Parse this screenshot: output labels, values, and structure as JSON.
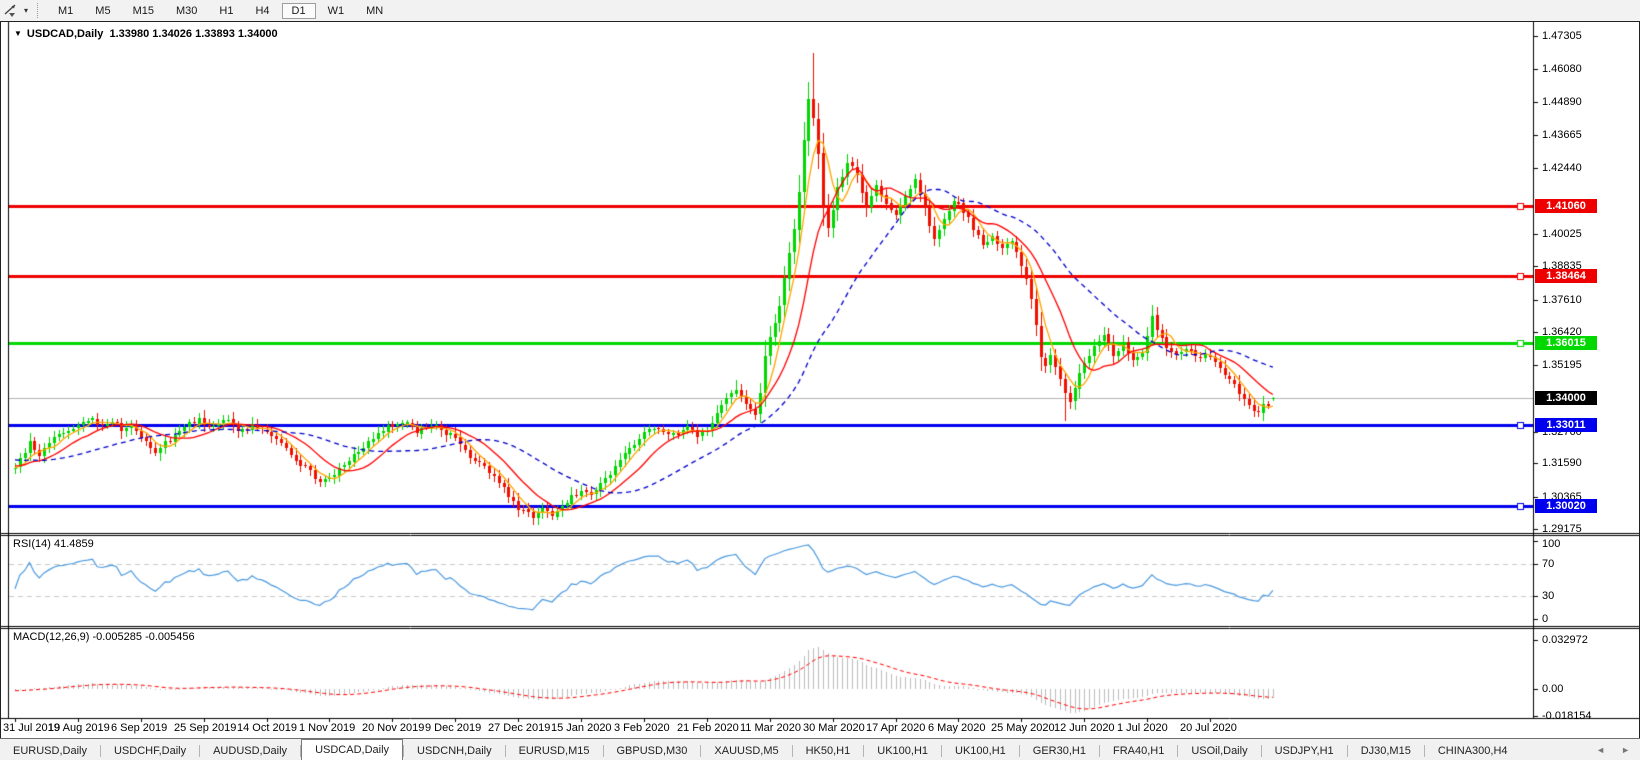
{
  "toolbar": {
    "periods": [
      "M1",
      "M5",
      "M15",
      "M30",
      "H1",
      "H4",
      "D1",
      "W1",
      "MN"
    ],
    "active_period": "D1",
    "line_tool_icon": "trendline-cursor-icon",
    "dropdown_caret": "▾"
  },
  "header": {
    "symbol": "USDCAD,Daily",
    "ohlc": "1.33980 1.34026 1.33893 1.34000"
  },
  "panels": {
    "rsi_label": "RSI(14) 41.4859",
    "macd_label": "MACD(12,26,9) -0.005285 -0.005456"
  },
  "tabs": {
    "items": [
      "EURUSD,Daily",
      "USDCHF,Daily",
      "AUDUSD,Daily",
      "USDCAD,Daily",
      "USDCNH,Daily",
      "EURUSD,M15",
      "GBPUSD,M30",
      "XAUUSD,M5",
      "HK50,H1",
      "UK100,H1",
      "UK100,H1",
      "GER30,H1",
      "FRA40,H1",
      "USOil,Daily",
      "USDJPY,H1",
      "DJ30,M15",
      "CHINA300,H4"
    ],
    "active": "USDCAD,Daily",
    "scroll_left": "◄",
    "scroll_right": "►"
  },
  "chart_data": {
    "type": "candlestick",
    "symbol": "USDCAD",
    "timeframe": "Daily",
    "colors": {
      "bull": "#00d800",
      "bear": "#f01000",
      "ma_fast_orange": "#ffa500",
      "ma_mid_red": "#ff0000",
      "ma_slow_blue": "#0000cc",
      "rsi_line": "#4c9ae0",
      "level_dash": "#c8c8c8",
      "macd_hist": "#bdbdbd",
      "macd_signal": "#ff0000",
      "current_price_line": "#b4b4b4",
      "current_price_bg": "#000000"
    },
    "y_axis": {
      "top_price": 1.47305,
      "bottom_price": 1.29175,
      "ticks": [
        "1.47305",
        "1.46080",
        "1.44890",
        "1.43665",
        "1.42440",
        "1.40025",
        "1.38835",
        "1.37610",
        "1.36420",
        "1.35195",
        "1.32760",
        "1.31590",
        "1.30365",
        "1.29175"
      ]
    },
    "x_axis": {
      "labels": [
        "31 Jul 2019",
        "19 Aug 2019",
        "6 Sep 2019",
        "25 Sep 2019",
        "14 Oct 2019",
        "1 Nov 2019",
        "20 Nov 2019",
        "9 Dec 2019",
        "27 Dec 2019",
        "15 Jan 2020",
        "3 Feb 2020",
        "21 Feb 2020",
        "11 Mar 2020",
        "30 Mar 2020",
        "17 Apr 2020",
        "6 May 2020",
        "25 May 2020",
        "12 Jun 2020",
        "1 Jul 2020",
        "20 Jul 2020"
      ],
      "label_day_index": [
        0,
        13,
        26,
        39,
        52,
        65,
        78,
        91,
        104,
        117,
        130,
        143,
        156,
        169,
        182,
        195,
        208,
        221,
        234,
        247
      ]
    },
    "h_lines": [
      {
        "price": 1.4106,
        "label": "1.41060",
        "color": "#ee0000",
        "width": 3
      },
      {
        "price": 1.38464,
        "label": "1.38464",
        "color": "#ee0000",
        "width": 3
      },
      {
        "price": 1.36015,
        "label": "1.36015",
        "color": "#00d800",
        "width": 3
      },
      {
        "price": 1.33011,
        "label": "1.33011",
        "color": "#0000ee",
        "width": 3
      },
      {
        "price": 1.3002,
        "label": "1.30020",
        "color": "#0000ee",
        "width": 3
      }
    ],
    "current_price": {
      "price": 1.34,
      "label": "1.34000"
    },
    "moving_averages": [
      {
        "period": 5,
        "color": "#ffa500",
        "style": "solid"
      },
      {
        "period": 12,
        "color": "#ff0000",
        "style": "solid"
      },
      {
        "period": 30,
        "color": "#0000cc",
        "style": "dashed"
      }
    ],
    "rsi": {
      "period": 14,
      "value": 41.4859,
      "levels": [
        70,
        30
      ],
      "ticks": [
        "100",
        "70",
        "30",
        "0"
      ],
      "tick_values": [
        100,
        70,
        30,
        0
      ]
    },
    "macd": {
      "fast": 12,
      "slow": 26,
      "signal": 9,
      "main_value": -0.005285,
      "signal_value": -0.005456,
      "ticks": [
        "0.032972",
        "0.00",
        "-0.018154"
      ],
      "tick_values": [
        0.032972,
        0,
        -0.018154
      ]
    },
    "prehistory_anchors": [
      [
        -60,
        1.3205
      ],
      [
        -45,
        1.3168
      ],
      [
        -30,
        1.3224
      ],
      [
        -15,
        1.3164
      ],
      [
        -1,
        1.3138
      ]
    ],
    "close_anchors": [
      [
        0,
        1.3135
      ],
      [
        1,
        1.318
      ],
      [
        3,
        1.323
      ],
      [
        5,
        1.3195
      ],
      [
        8,
        1.3265
      ],
      [
        11,
        1.3285
      ],
      [
        14,
        1.3305
      ],
      [
        16,
        1.333
      ],
      [
        18,
        1.329
      ],
      [
        20,
        1.332
      ],
      [
        22,
        1.3282
      ],
      [
        24,
        1.33
      ],
      [
        26,
        1.325
      ],
      [
        29,
        1.3205
      ],
      [
        32,
        1.3245
      ],
      [
        35,
        1.329
      ],
      [
        38,
        1.3318
      ],
      [
        41,
        1.3295
      ],
      [
        44,
        1.333
      ],
      [
        46,
        1.327
      ],
      [
        49,
        1.3305
      ],
      [
        52,
        1.3272
      ],
      [
        55,
        1.3225
      ],
      [
        58,
        1.3168
      ],
      [
        61,
        1.3125
      ],
      [
        63,
        1.3085
      ],
      [
        65,
        1.3108
      ],
      [
        68,
        1.3152
      ],
      [
        71,
        1.32
      ],
      [
        74,
        1.3248
      ],
      [
        77,
        1.3292
      ],
      [
        80,
        1.331
      ],
      [
        83,
        1.328
      ],
      [
        86,
        1.3302
      ],
      [
        89,
        1.3272
      ],
      [
        91,
        1.3248
      ],
      [
        94,
        1.3185
      ],
      [
        96,
        1.3158
      ],
      [
        99,
        1.3122
      ],
      [
        101,
        1.3062
      ],
      [
        103,
        1.3012
      ],
      [
        105,
        1.2982
      ],
      [
        107,
        1.2958
      ],
      [
        109,
        1.2988
      ],
      [
        111,
        1.2965
      ],
      [
        113,
        1.2998
      ],
      [
        115,
        1.3042
      ],
      [
        117,
        1.3058
      ],
      [
        119,
        1.3048
      ],
      [
        122,
        1.3098
      ],
      [
        125,
        1.3162
      ],
      [
        128,
        1.3232
      ],
      [
        130,
        1.327
      ],
      [
        133,
        1.3296
      ],
      [
        136,
        1.3262
      ],
      [
        139,
        1.3292
      ],
      [
        141,
        1.3258
      ],
      [
        143,
        1.3282
      ],
      [
        145,
        1.3335
      ],
      [
        147,
        1.3395
      ],
      [
        149,
        1.3428
      ],
      [
        151,
        1.3378
      ],
      [
        153,
        1.3335
      ],
      [
        154,
        1.342
      ],
      [
        155,
        1.356
      ],
      [
        156,
        1.3615
      ],
      [
        157,
        1.368
      ],
      [
        158,
        1.3745
      ],
      [
        159,
        1.383
      ],
      [
        160,
        1.3925
      ],
      [
        161,
        1.403
      ],
      [
        162,
        1.4155
      ],
      [
        163,
        1.435
      ],
      [
        164,
        1.4495
      ],
      [
        165,
        1.4425
      ],
      [
        166,
        1.429
      ],
      [
        167,
        1.411
      ],
      [
        168,
        1.403
      ],
      [
        170,
        1.4165
      ],
      [
        172,
        1.427
      ],
      [
        174,
        1.4215
      ],
      [
        176,
        1.4105
      ],
      [
        178,
        1.4185
      ],
      [
        180,
        1.4125
      ],
      [
        182,
        1.4078
      ],
      [
        184,
        1.4152
      ],
      [
        186,
        1.4205
      ],
      [
        188,
        1.4098
      ],
      [
        190,
        1.3985
      ],
      [
        192,
        1.4058
      ],
      [
        194,
        1.4125
      ],
      [
        196,
        1.4085
      ],
      [
        198,
        1.4022
      ],
      [
        200,
        1.3958
      ],
      [
        202,
        1.4005
      ],
      [
        204,
        1.3945
      ],
      [
        206,
        1.3975
      ],
      [
        208,
        1.389
      ],
      [
        210,
        1.3768
      ],
      [
        211,
        1.3665
      ],
      [
        212,
        1.356
      ],
      [
        213,
        1.3512
      ],
      [
        214,
        1.3558
      ],
      [
        216,
        1.3478
      ],
      [
        217,
        1.3425
      ],
      [
        218,
        1.3392
      ],
      [
        219,
        1.3445
      ],
      [
        221,
        1.3532
      ],
      [
        223,
        1.3582
      ],
      [
        225,
        1.3622
      ],
      [
        227,
        1.3562
      ],
      [
        229,
        1.3602
      ],
      [
        231,
        1.3548
      ],
      [
        233,
        1.3572
      ],
      [
        234,
        1.3625
      ],
      [
        235,
        1.3692
      ],
      [
        236,
        1.3648
      ],
      [
        238,
        1.3582
      ],
      [
        240,
        1.3555
      ],
      [
        242,
        1.3588
      ],
      [
        244,
        1.3542
      ],
      [
        246,
        1.3562
      ],
      [
        248,
        1.3522
      ],
      [
        250,
        1.3482
      ],
      [
        252,
        1.3442
      ],
      [
        254,
        1.3398
      ],
      [
        256,
        1.3362
      ],
      [
        257,
        1.3342
      ],
      [
        258,
        1.3388
      ],
      [
        259,
        1.3362
      ],
      [
        260,
        1.34
      ]
    ],
    "spikes": [
      {
        "d": 107,
        "low": 1.2949
      },
      {
        "d": 149,
        "high": 1.3465
      },
      {
        "d": 164,
        "high": 1.456
      },
      {
        "d": 165,
        "high": 1.4669
      },
      {
        "d": 217,
        "low": 1.3315
      },
      {
        "d": 235,
        "high": 1.3715
      },
      {
        "d": 257,
        "low": 1.333
      }
    ],
    "last_candle": {
      "open": 1.3398,
      "high": 1.34026,
      "low": 1.33893,
      "close": 1.34
    }
  }
}
